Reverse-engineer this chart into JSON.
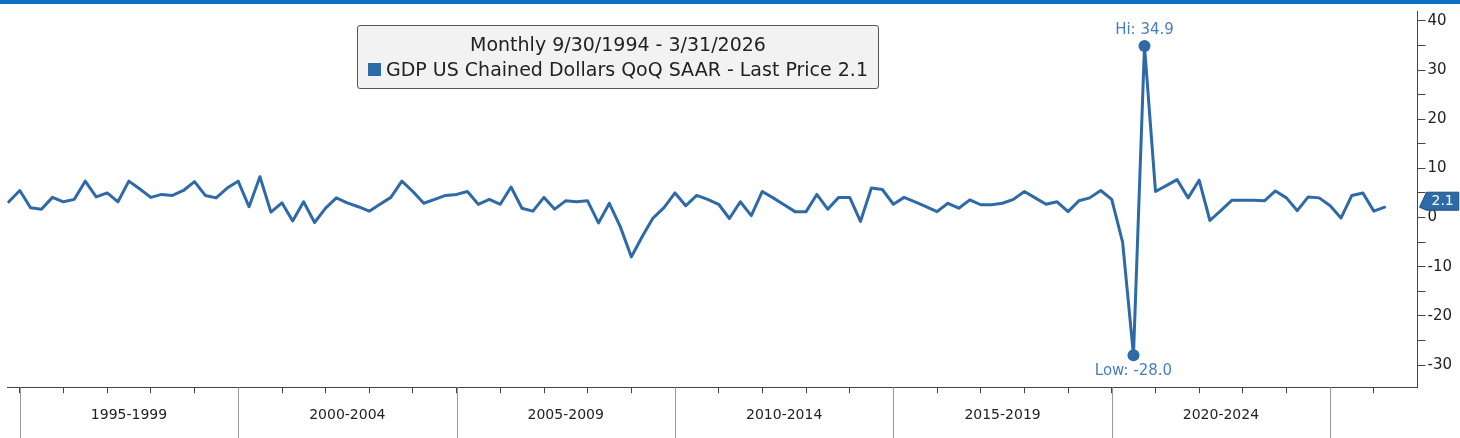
{
  "chart_data": {
    "type": "line",
    "legend_title": "Monthly 9/30/1994 - 3/31/2026",
    "legend": "top",
    "grid": false,
    "marker": "none",
    "line_style": "solid",
    "x": [
      "1994-09-30",
      "1994-12-31",
      "1995-03-31",
      "1995-06-30",
      "1995-09-30",
      "1995-12-31",
      "1996-03-31",
      "1996-06-30",
      "1996-09-30",
      "1996-12-31",
      "1997-03-31",
      "1997-06-30",
      "1997-09-30",
      "1997-12-31",
      "1998-03-31",
      "1998-06-30",
      "1998-09-30",
      "1998-12-31",
      "1999-03-31",
      "1999-06-30",
      "1999-09-30",
      "1999-12-31",
      "2000-03-31",
      "2000-06-30",
      "2000-09-30",
      "2000-12-31",
      "2001-03-31",
      "2001-06-30",
      "2001-09-30",
      "2001-12-31",
      "2002-03-31",
      "2002-06-30",
      "2002-09-30",
      "2002-12-31",
      "2003-03-31",
      "2003-06-30",
      "2003-09-30",
      "2003-12-31",
      "2004-03-31",
      "2004-06-30",
      "2004-09-30",
      "2004-12-31",
      "2005-03-31",
      "2005-06-30",
      "2005-09-30",
      "2005-12-31",
      "2006-03-31",
      "2006-06-30",
      "2006-09-30",
      "2006-12-31",
      "2007-03-31",
      "2007-06-30",
      "2007-09-30",
      "2007-12-31",
      "2008-03-31",
      "2008-06-30",
      "2008-09-30",
      "2008-12-31",
      "2009-03-31",
      "2009-06-30",
      "2009-09-30",
      "2009-12-31",
      "2010-03-31",
      "2010-06-30",
      "2010-09-30",
      "2010-12-31",
      "2011-03-31",
      "2011-06-30",
      "2011-09-30",
      "2011-12-31",
      "2012-03-31",
      "2012-06-30",
      "2012-09-30",
      "2012-12-31",
      "2013-03-31",
      "2013-06-30",
      "2013-09-30",
      "2013-12-31",
      "2014-03-31",
      "2014-06-30",
      "2014-09-30",
      "2014-12-31",
      "2015-03-31",
      "2015-06-30",
      "2015-09-30",
      "2015-12-31",
      "2016-03-31",
      "2016-06-30",
      "2016-09-30",
      "2016-12-31",
      "2017-03-31",
      "2017-06-30",
      "2017-09-30",
      "2017-12-31",
      "2018-03-31",
      "2018-06-30",
      "2018-09-30",
      "2018-12-31",
      "2019-03-31",
      "2019-06-30",
      "2019-09-30",
      "2019-12-31",
      "2020-03-31",
      "2020-06-30",
      "2020-09-30",
      "2020-12-31",
      "2021-03-31",
      "2021-06-30",
      "2021-09-30",
      "2021-12-31",
      "2022-03-31",
      "2022-06-30",
      "2022-09-30",
      "2022-12-31",
      "2023-03-31",
      "2023-06-30",
      "2023-09-30",
      "2023-12-31",
      "2024-03-31",
      "2024-06-30",
      "2024-09-30",
      "2024-12-31",
      "2025-03-31",
      "2025-06-30",
      "2025-09-30",
      "2025-12-31",
      "2026-03-31"
    ],
    "series": [
      {
        "name": "GDP US Chained Dollars QoQ SAAR - Last Price 2.1",
        "color": "#2e6aa8",
        "values": [
          3.2,
          5.5,
          2.0,
          1.7,
          4.1,
          3.2,
          3.7,
          7.4,
          4.2,
          5.0,
          3.2,
          7.4,
          5.8,
          4.1,
          4.7,
          4.5,
          5.5,
          7.3,
          4.5,
          4.0,
          6.0,
          7.4,
          2.2,
          8.3,
          1.1,
          3.0,
          -0.7,
          3.2,
          -1.0,
          1.9,
          4.0,
          3.0,
          2.2,
          1.3,
          2.7,
          4.1,
          7.4,
          5.3,
          2.9,
          3.7,
          4.5,
          4.7,
          5.3,
          2.7,
          3.7,
          2.7,
          6.2,
          1.9,
          1.3,
          4.1,
          1.7,
          3.4,
          3.2,
          3.4,
          -1.1,
          2.9,
          -1.9,
          -8.0,
          -3.9,
          -0.1,
          2.0,
          5.0,
          2.4,
          4.5,
          3.7,
          2.7,
          -0.2,
          3.2,
          0.4,
          5.3,
          4.0,
          2.6,
          1.2,
          1.2,
          4.7,
          1.7,
          4.1,
          4.1,
          -0.8,
          6.0,
          5.7,
          2.7,
          4.1,
          3.2,
          2.2,
          1.2,
          2.9,
          1.9,
          3.6,
          2.6,
          2.6,
          2.9,
          3.7,
          5.3,
          4.0,
          2.7,
          3.2,
          1.2,
          3.4,
          4.0,
          5.5,
          3.7,
          -5.0,
          -28.0,
          34.9,
          5.3,
          6.5,
          7.7,
          4.0,
          7.6,
          -0.6,
          1.4,
          3.5,
          3.5,
          3.5,
          3.4,
          5.4,
          4.0,
          1.4,
          4.2,
          4.0,
          2.4,
          -0.1,
          4.5,
          5.0,
          1.3,
          2.1
        ]
      }
    ],
    "xlim": [
      "1994-09-15",
      "2026-12-31"
    ],
    "xticks": [
      {
        "value": "1995-01-01",
        "label": null
      },
      {
        "value": "1996-01-01",
        "label": null
      },
      {
        "value": "1997-01-01",
        "label": null
      },
      {
        "value": "1997-07-01",
        "label": "1995-1999"
      },
      {
        "value": "1998-01-01",
        "label": null
      },
      {
        "value": "1999-01-01",
        "label": null
      },
      {
        "value": "2000-01-01",
        "label": null
      },
      {
        "value": "2001-01-01",
        "label": null
      },
      {
        "value": "2002-01-01",
        "label": null
      },
      {
        "value": "2002-07-01",
        "label": "2000-2004"
      },
      {
        "value": "2003-01-01",
        "label": null
      },
      {
        "value": "2004-01-01",
        "label": null
      },
      {
        "value": "2005-01-01",
        "label": null
      },
      {
        "value": "2006-01-01",
        "label": null
      },
      {
        "value": "2007-01-01",
        "label": null
      },
      {
        "value": "2007-07-01",
        "label": "2005-2009"
      },
      {
        "value": "2008-01-01",
        "label": null
      },
      {
        "value": "2009-01-01",
        "label": null
      },
      {
        "value": "2010-01-01",
        "label": null
      },
      {
        "value": "2011-01-01",
        "label": null
      },
      {
        "value": "2012-01-01",
        "label": null
      },
      {
        "value": "2012-07-01",
        "label": "2010-2014"
      },
      {
        "value": "2013-01-01",
        "label": null
      },
      {
        "value": "2014-01-01",
        "label": null
      },
      {
        "value": "2015-01-01",
        "label": null
      },
      {
        "value": "2016-01-01",
        "label": null
      },
      {
        "value": "2017-01-01",
        "label": null
      },
      {
        "value": "2017-07-01",
        "label": "2015-2019"
      },
      {
        "value": "2018-01-01",
        "label": null
      },
      {
        "value": "2019-01-01",
        "label": null
      },
      {
        "value": "2020-01-01",
        "label": null
      },
      {
        "value": "2021-01-01",
        "label": null
      },
      {
        "value": "2022-01-01",
        "label": null
      },
      {
        "value": "2022-07-01",
        "label": "2020-2024"
      },
      {
        "value": "2023-01-01",
        "label": null
      },
      {
        "value": "2024-01-01",
        "label": null
      },
      {
        "value": "2025-01-01",
        "label": null
      },
      {
        "value": "2026-01-01",
        "label": null
      }
    ],
    "ylim": [
      -34.5,
      42
    ],
    "yticks": [
      -30,
      {
        "value": -25,
        "label": null
      },
      -20,
      {
        "value": -15,
        "label": null
      },
      -10,
      {
        "value": -5,
        "label": null
      },
      0,
      {
        "value": 5,
        "label": null
      },
      10,
      {
        "value": 15,
        "label": null
      },
      20,
      {
        "value": 25,
        "label": null
      },
      30,
      {
        "value": 35,
        "label": null
      },
      40
    ],
    "annotations": [
      {
        "text": "Hi: 34.9",
        "x": "2020-09-30",
        "y": 34.9
      },
      {
        "text": "Low: -28.0",
        "x": "2020-06-30",
        "y": -28.0
      },
      "2.1"
    ]
  }
}
